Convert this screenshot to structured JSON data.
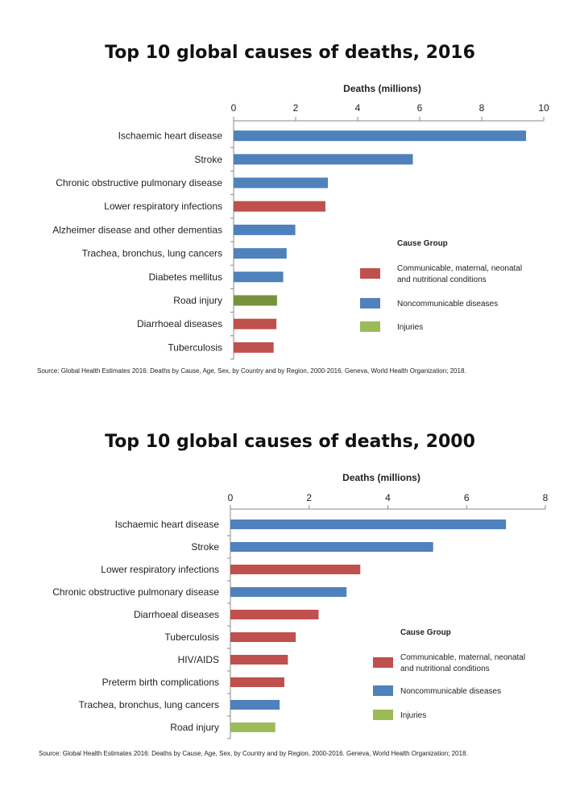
{
  "colors": {
    "Communicable, maternal, neonatal and nutritional conditions": "#c0504d",
    "Noncommunicable diseases": "#4f81bd",
    "Injuries": "#9bbb59",
    "injuries_2016_bar": "#77933c"
  },
  "chart_data": [
    {
      "type": "bar",
      "orientation": "horizontal",
      "title": "Top 10 global causes of deaths, 2016",
      "xlabel": "Deaths (millions)",
      "xlim": [
        0,
        10
      ],
      "xticks": [
        "0",
        "2",
        "4",
        "6",
        "8",
        "10"
      ],
      "grid": false,
      "legend_position": "right",
      "legend_title": "Cause Group",
      "legend": [
        {
          "label_lines": [
            "Communicable, maternal, neonatal",
            "and nutritional conditions"
          ],
          "group": "Communicable, maternal, neonatal and nutritional conditions"
        },
        {
          "label_lines": [
            "Noncommunicable diseases"
          ],
          "group": "Noncommunicable diseases"
        },
        {
          "label_lines": [
            "Injuries"
          ],
          "group": "Injuries"
        }
      ],
      "categories": [
        "Ischaemic heart disease",
        "Stroke",
        "Chronic obstructive pulmonary disease",
        "Lower respiratory infections",
        "Alzheimer disease and other dementias",
        "Trachea, bronchus, lung cancers",
        "Diabetes mellitus",
        "Road injury",
        "Diarrhoeal diseases",
        "Tuberculosis"
      ],
      "values": [
        9.43,
        5.78,
        3.04,
        2.96,
        1.99,
        1.71,
        1.6,
        1.4,
        1.38,
        1.29
      ],
      "groups": [
        "Noncommunicable diseases",
        "Noncommunicable diseases",
        "Noncommunicable diseases",
        "Communicable, maternal, neonatal and nutritional conditions",
        "Noncommunicable diseases",
        "Noncommunicable diseases",
        "Noncommunicable diseases",
        "Injuries",
        "Communicable, maternal, neonatal and nutritional conditions",
        "Communicable, maternal, neonatal and nutritional conditions"
      ],
      "source": "Source:  Global Health Estimates  2016: Deaths by Cause, Age,  Sex, by Country and by Region,  2000-2016. Geneva, World Health Organization;  2018."
    },
    {
      "type": "bar",
      "orientation": "horizontal",
      "title": "Top 10 global causes of deaths, 2000",
      "xlabel": "Deaths (millions)",
      "xlim": [
        0,
        8
      ],
      "xticks": [
        "0",
        "2",
        "4",
        "6",
        "8"
      ],
      "grid": false,
      "legend_position": "right",
      "legend_title": "Cause Group",
      "legend": [
        {
          "label_lines": [
            "Communicable, maternal, neonatal",
            "and nutritional conditions"
          ],
          "group": "Communicable, maternal, neonatal and nutritional conditions"
        },
        {
          "label_lines": [
            "Noncommunicable diseases"
          ],
          "group": "Noncommunicable diseases"
        },
        {
          "label_lines": [
            "Injuries"
          ],
          "group": "Injuries"
        }
      ],
      "categories": [
        "Ischaemic heart disease",
        "Stroke",
        "Lower respiratory infections",
        "Chronic obstructive pulmonary disease",
        "Diarrhoeal diseases",
        "Tuberculosis",
        "HIV/AIDS",
        "Preterm birth complications",
        "Trachea, bronchus, lung cancers",
        "Road injury"
      ],
      "values": [
        7.0,
        5.15,
        3.3,
        2.95,
        2.24,
        1.66,
        1.46,
        1.37,
        1.25,
        1.14
      ],
      "groups": [
        "Noncommunicable diseases",
        "Noncommunicable diseases",
        "Communicable, maternal, neonatal and nutritional conditions",
        "Noncommunicable diseases",
        "Communicable, maternal, neonatal and nutritional conditions",
        "Communicable, maternal, neonatal and nutritional conditions",
        "Communicable, maternal, neonatal and nutritional conditions",
        "Communicable, maternal, neonatal and nutritional conditions",
        "Noncommunicable diseases",
        "Injuries"
      ],
      "source": "Source:  Global Health Estimates  2016: Deaths by Cause, Age,  Sex, by Country and by Region,  2000-2016. Geneva, World Health Organization;  2018."
    }
  ]
}
